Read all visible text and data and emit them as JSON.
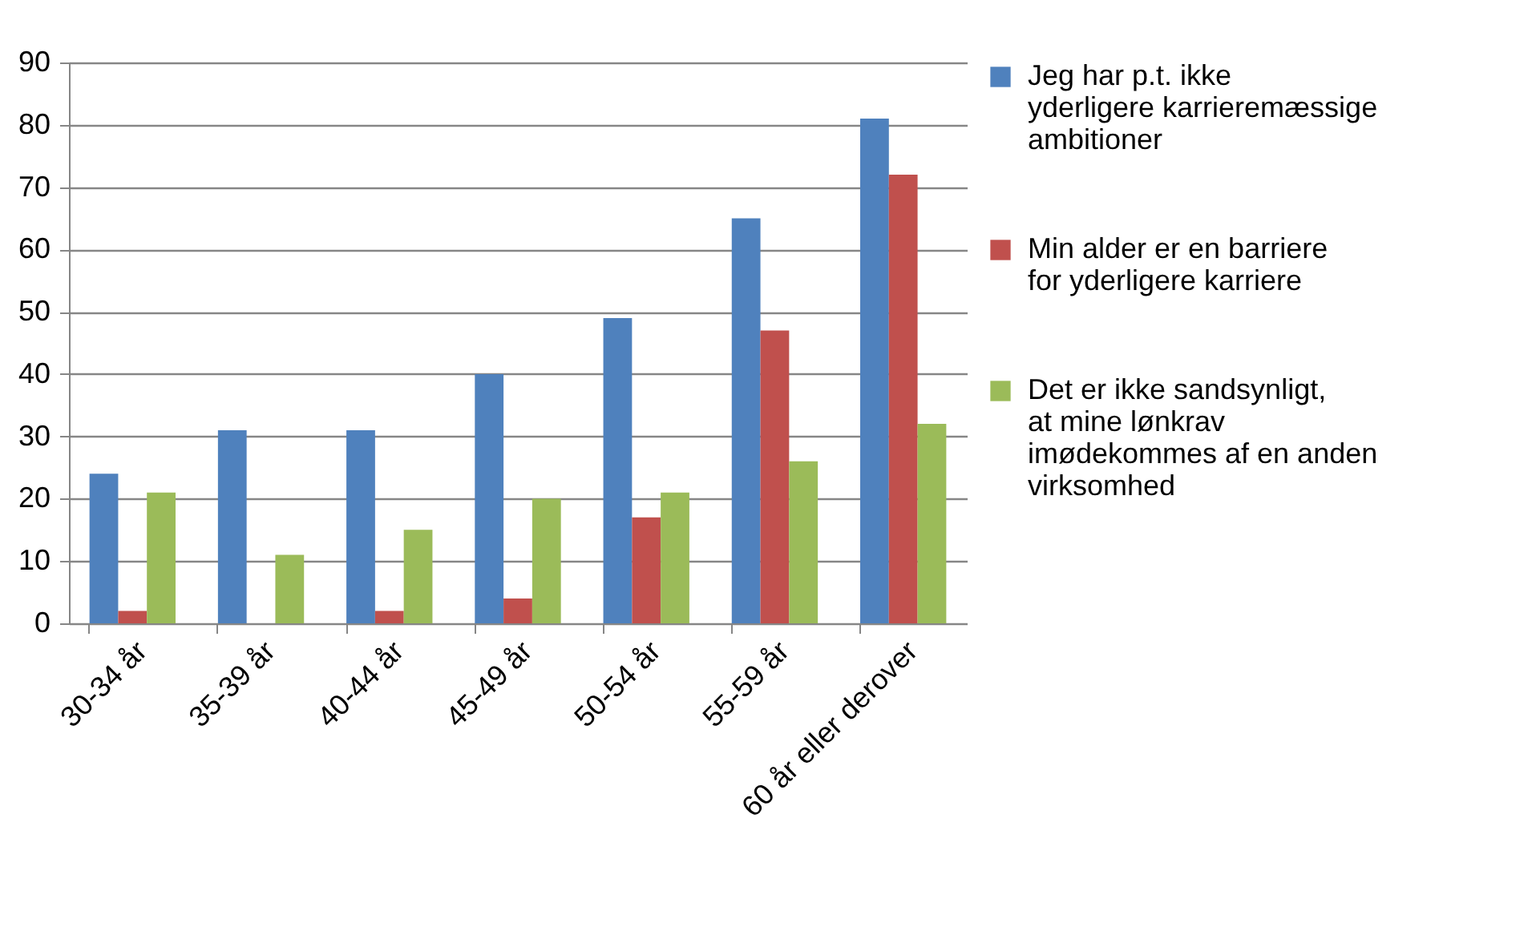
{
  "chart_data": {
    "type": "bar",
    "categories": [
      "30-34 år",
      "35-39 år",
      "40-44 år",
      "45-49 år",
      "50-54 år",
      "55-59 år",
      "60 år eller derover"
    ],
    "series": [
      {
        "name": "Jeg har p.t. ikke yderligere karrieremæssige ambitioner",
        "color": "#4f81bd",
        "values": [
          24,
          31,
          31,
          40,
          49,
          65,
          81
        ]
      },
      {
        "name": "Min alder er en barriere for yderligere karriere",
        "color": "#c0504d",
        "values": [
          2,
          0,
          2,
          4,
          17,
          47,
          72
        ]
      },
      {
        "name": "Det er ikke sandsynligt, at mine lønkrav imødekommes af en anden virksomhed",
        "color": "#9bbb59",
        "values": [
          21,
          11,
          15,
          20,
          21,
          26,
          32
        ]
      }
    ],
    "ylim": [
      0,
      90
    ],
    "yticks": [
      0,
      10,
      20,
      30,
      40,
      50,
      60,
      70,
      80,
      90
    ],
    "grid": "y",
    "legend": "right"
  }
}
